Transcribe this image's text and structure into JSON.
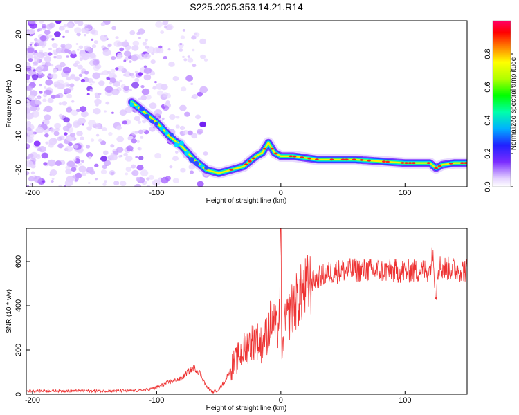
{
  "figure": {
    "title": "S225.2025.353.14.21.R14"
  },
  "chart_data": [
    {
      "type": "heatmap",
      "name": "spectrogram",
      "xlabel": "Height of straight line (km)",
      "ylabel": "Frequency (Hz)",
      "xlim": [
        -205,
        150
      ],
      "ylim": [
        -25,
        24
      ],
      "xticks": [
        -200,
        -100,
        0,
        100
      ],
      "yticks": [
        -20,
        -10,
        0,
        10,
        20
      ],
      "signal_track": {
        "x": [
          -120,
          -110,
          -100,
          -90,
          -80,
          -70,
          -60,
          -50,
          -40,
          -30,
          -20,
          -15,
          -10,
          -5,
          0,
          5,
          10,
          20,
          30,
          40,
          60,
          80,
          100,
          120,
          125,
          130,
          140,
          150
        ],
        "y": [
          0,
          -3,
          -6,
          -10,
          -13,
          -17,
          -20,
          -21,
          -20,
          -19,
          -16,
          -15,
          -12,
          -15,
          -16,
          -16,
          -16,
          -16.5,
          -17,
          -17,
          -17,
          -17.5,
          -18,
          -18,
          -19.5,
          -18.5,
          -18,
          -18
        ]
      },
      "colorbar": {
        "label": "Normalized spectral amplitude",
        "range": [
          0,
          1
        ],
        "ticks": [
          0.0,
          0.2,
          0.4,
          0.6,
          0.8
        ]
      }
    },
    {
      "type": "line",
      "name": "snr",
      "xlabel": "Height of straight line (km)",
      "ylabel": "SNR (10 * v/v)",
      "xlim": [
        -205,
        150
      ],
      "ylim": [
        0,
        750
      ],
      "xticks": [
        -200,
        -100,
        0,
        100
      ],
      "yticks": [
        0,
        200,
        400,
        600
      ],
      "color": "#ee3333",
      "series": [
        {
          "name": "SNR",
          "x": [
            -205,
            -180,
            -160,
            -140,
            -120,
            -110,
            -100,
            -90,
            -80,
            -75,
            -70,
            -65,
            -60,
            -55,
            -50,
            -45,
            -40,
            -35,
            -30,
            -25,
            -20,
            -15,
            -10,
            -8,
            -5,
            -3,
            -2,
            -1,
            0,
            1,
            2,
            5,
            10,
            15,
            20,
            30,
            40,
            50,
            60,
            80,
            100,
            120,
            123,
            124,
            125,
            126,
            128,
            130,
            140,
            150
          ],
          "y": [
            15,
            15,
            15,
            15,
            15,
            18,
            30,
            55,
            70,
            100,
            120,
            95,
            35,
            10,
            20,
            60,
            120,
            160,
            200,
            230,
            250,
            220,
            290,
            330,
            310,
            280,
            320,
            380,
            720,
            100,
            280,
            330,
            400,
            440,
            480,
            530,
            550,
            560,
            560,
            560,
            555,
            560,
            650,
            500,
            420,
            560,
            580,
            570,
            565,
            560
          ]
        }
      ]
    }
  ]
}
